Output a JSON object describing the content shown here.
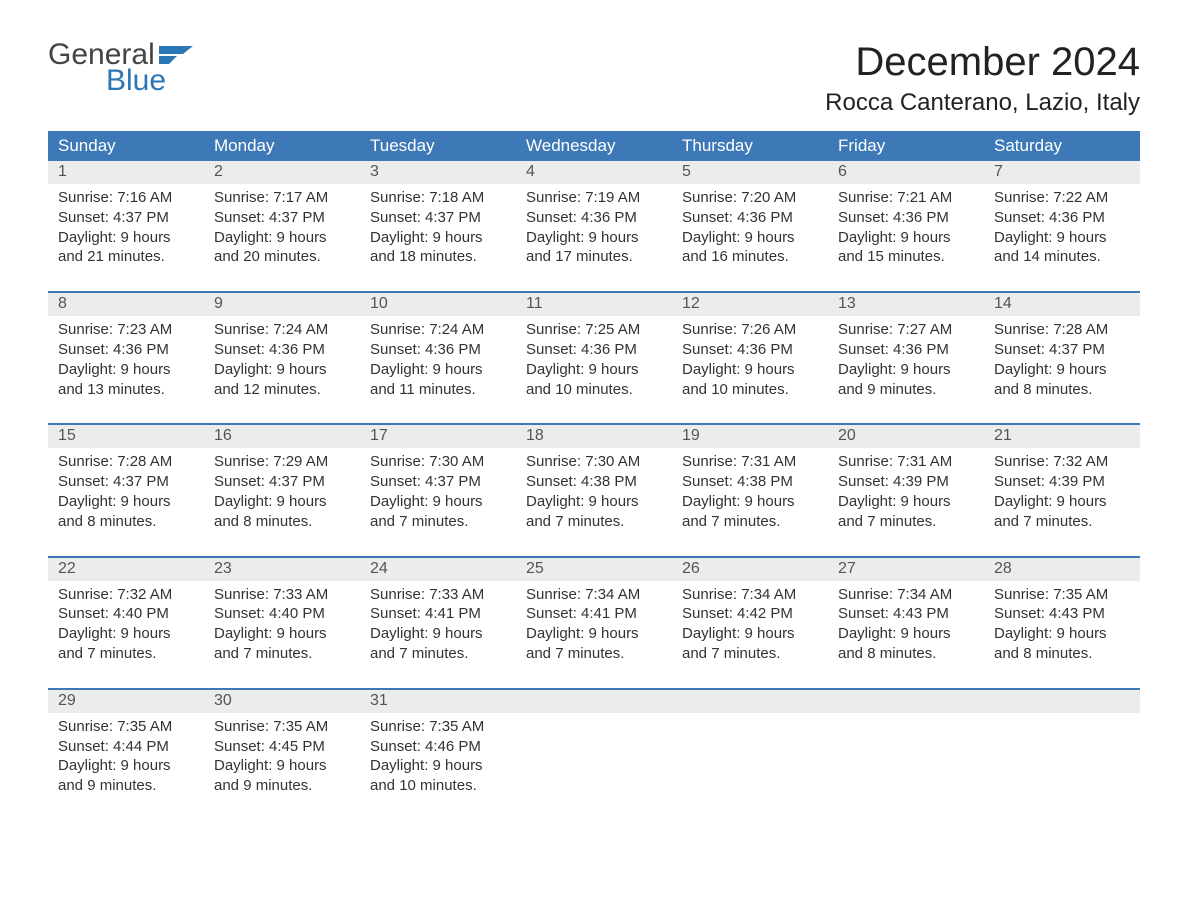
{
  "logo": {
    "text_top": "General",
    "text_bottom": "Blue",
    "mark_color": "#2b77b6",
    "top_color": "#444444"
  },
  "title": "December 2024",
  "subtitle": "Rocca Canterano, Lazio, Italy",
  "weekdays": [
    "Sunday",
    "Monday",
    "Tuesday",
    "Wednesday",
    "Thursday",
    "Friday",
    "Saturday"
  ],
  "colors": {
    "header_bg": "#3d79b6",
    "header_text": "#ffffff",
    "daynum_bg": "#ececec",
    "daynum_text": "#555555",
    "body_text": "#333333",
    "week_border": "#3d79b6",
    "page_bg": "#ffffff"
  },
  "weeks": [
    [
      {
        "n": "1",
        "sunrise": "7:16 AM",
        "sunset": "4:37 PM",
        "daylight": "9 hours and 21 minutes."
      },
      {
        "n": "2",
        "sunrise": "7:17 AM",
        "sunset": "4:37 PM",
        "daylight": "9 hours and 20 minutes."
      },
      {
        "n": "3",
        "sunrise": "7:18 AM",
        "sunset": "4:37 PM",
        "daylight": "9 hours and 18 minutes."
      },
      {
        "n": "4",
        "sunrise": "7:19 AM",
        "sunset": "4:36 PM",
        "daylight": "9 hours and 17 minutes."
      },
      {
        "n": "5",
        "sunrise": "7:20 AM",
        "sunset": "4:36 PM",
        "daylight": "9 hours and 16 minutes."
      },
      {
        "n": "6",
        "sunrise": "7:21 AM",
        "sunset": "4:36 PM",
        "daylight": "9 hours and 15 minutes."
      },
      {
        "n": "7",
        "sunrise": "7:22 AM",
        "sunset": "4:36 PM",
        "daylight": "9 hours and 14 minutes."
      }
    ],
    [
      {
        "n": "8",
        "sunrise": "7:23 AM",
        "sunset": "4:36 PM",
        "daylight": "9 hours and 13 minutes."
      },
      {
        "n": "9",
        "sunrise": "7:24 AM",
        "sunset": "4:36 PM",
        "daylight": "9 hours and 12 minutes."
      },
      {
        "n": "10",
        "sunrise": "7:24 AM",
        "sunset": "4:36 PM",
        "daylight": "9 hours and 11 minutes."
      },
      {
        "n": "11",
        "sunrise": "7:25 AM",
        "sunset": "4:36 PM",
        "daylight": "9 hours and 10 minutes."
      },
      {
        "n": "12",
        "sunrise": "7:26 AM",
        "sunset": "4:36 PM",
        "daylight": "9 hours and 10 minutes."
      },
      {
        "n": "13",
        "sunrise": "7:27 AM",
        "sunset": "4:36 PM",
        "daylight": "9 hours and 9 minutes."
      },
      {
        "n": "14",
        "sunrise": "7:28 AM",
        "sunset": "4:37 PM",
        "daylight": "9 hours and 8 minutes."
      }
    ],
    [
      {
        "n": "15",
        "sunrise": "7:28 AM",
        "sunset": "4:37 PM",
        "daylight": "9 hours and 8 minutes."
      },
      {
        "n": "16",
        "sunrise": "7:29 AM",
        "sunset": "4:37 PM",
        "daylight": "9 hours and 8 minutes."
      },
      {
        "n": "17",
        "sunrise": "7:30 AM",
        "sunset": "4:37 PM",
        "daylight": "9 hours and 7 minutes."
      },
      {
        "n": "18",
        "sunrise": "7:30 AM",
        "sunset": "4:38 PM",
        "daylight": "9 hours and 7 minutes."
      },
      {
        "n": "19",
        "sunrise": "7:31 AM",
        "sunset": "4:38 PM",
        "daylight": "9 hours and 7 minutes."
      },
      {
        "n": "20",
        "sunrise": "7:31 AM",
        "sunset": "4:39 PM",
        "daylight": "9 hours and 7 minutes."
      },
      {
        "n": "21",
        "sunrise": "7:32 AM",
        "sunset": "4:39 PM",
        "daylight": "9 hours and 7 minutes."
      }
    ],
    [
      {
        "n": "22",
        "sunrise": "7:32 AM",
        "sunset": "4:40 PM",
        "daylight": "9 hours and 7 minutes."
      },
      {
        "n": "23",
        "sunrise": "7:33 AM",
        "sunset": "4:40 PM",
        "daylight": "9 hours and 7 minutes."
      },
      {
        "n": "24",
        "sunrise": "7:33 AM",
        "sunset": "4:41 PM",
        "daylight": "9 hours and 7 minutes."
      },
      {
        "n": "25",
        "sunrise": "7:34 AM",
        "sunset": "4:41 PM",
        "daylight": "9 hours and 7 minutes."
      },
      {
        "n": "26",
        "sunrise": "7:34 AM",
        "sunset": "4:42 PM",
        "daylight": "9 hours and 7 minutes."
      },
      {
        "n": "27",
        "sunrise": "7:34 AM",
        "sunset": "4:43 PM",
        "daylight": "9 hours and 8 minutes."
      },
      {
        "n": "28",
        "sunrise": "7:35 AM",
        "sunset": "4:43 PM",
        "daylight": "9 hours and 8 minutes."
      }
    ],
    [
      {
        "n": "29",
        "sunrise": "7:35 AM",
        "sunset": "4:44 PM",
        "daylight": "9 hours and 9 minutes."
      },
      {
        "n": "30",
        "sunrise": "7:35 AM",
        "sunset": "4:45 PM",
        "daylight": "9 hours and 9 minutes."
      },
      {
        "n": "31",
        "sunrise": "7:35 AM",
        "sunset": "4:46 PM",
        "daylight": "9 hours and 10 minutes."
      },
      {
        "empty": true
      },
      {
        "empty": true
      },
      {
        "empty": true
      },
      {
        "empty": true
      }
    ]
  ],
  "labels": {
    "sunrise": "Sunrise: ",
    "sunset": "Sunset: ",
    "daylight": "Daylight: "
  }
}
